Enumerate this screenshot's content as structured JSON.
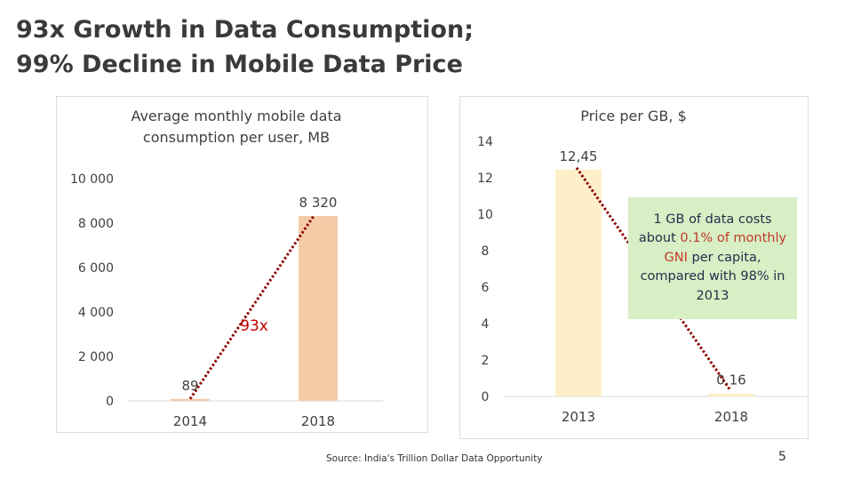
{
  "slide": {
    "title_line1": "93x Growth in Data Consumption;",
    "title_line2": "99% Decline in Mobile Data Price",
    "source": "Source: India's Trillion Dollar Data Opportunity",
    "page_number": "5",
    "callout": {
      "part1": "1 GB of data costs about ",
      "highlight": "0.1% of monthly GNI",
      "part2": " per capita, compared with 98% in 2013",
      "background": "#d8eec4",
      "highlight_color": "#c0392b"
    }
  },
  "chart_data": [
    {
      "type": "bar",
      "title_line1": "Average monthly mobile data",
      "title_line2": "consumption per user, MB",
      "categories": [
        "2014",
        "2018"
      ],
      "values": [
        89,
        8320
      ],
      "data_labels": [
        "89",
        "8 320"
      ],
      "ylim": [
        0,
        10000
      ],
      "yticks": [
        0,
        2000,
        4000,
        6000,
        8000,
        10000
      ],
      "ytick_labels": [
        "0",
        "2 000",
        "4 000",
        "6 000",
        "8 000",
        "10 000"
      ],
      "grid": false,
      "bar_color": "#f5cba7",
      "annotation": {
        "text": "93x",
        "color": "#c00000"
      },
      "trend_line_color": "#8b0000"
    },
    {
      "type": "bar",
      "title_line1": "Price per GB, $",
      "categories": [
        "2013",
        "2018"
      ],
      "values": [
        12.45,
        0.16
      ],
      "data_labels": [
        "12,45",
        "0,16"
      ],
      "ylim": [
        0,
        14
      ],
      "yticks": [
        0,
        2,
        4,
        6,
        8,
        10,
        12,
        14
      ],
      "ytick_labels": [
        "0",
        "2",
        "4",
        "6",
        "8",
        "10",
        "12",
        "14"
      ],
      "grid": false,
      "bar_color": "#fdefc8",
      "trend_line_color": "#8b0000"
    }
  ]
}
